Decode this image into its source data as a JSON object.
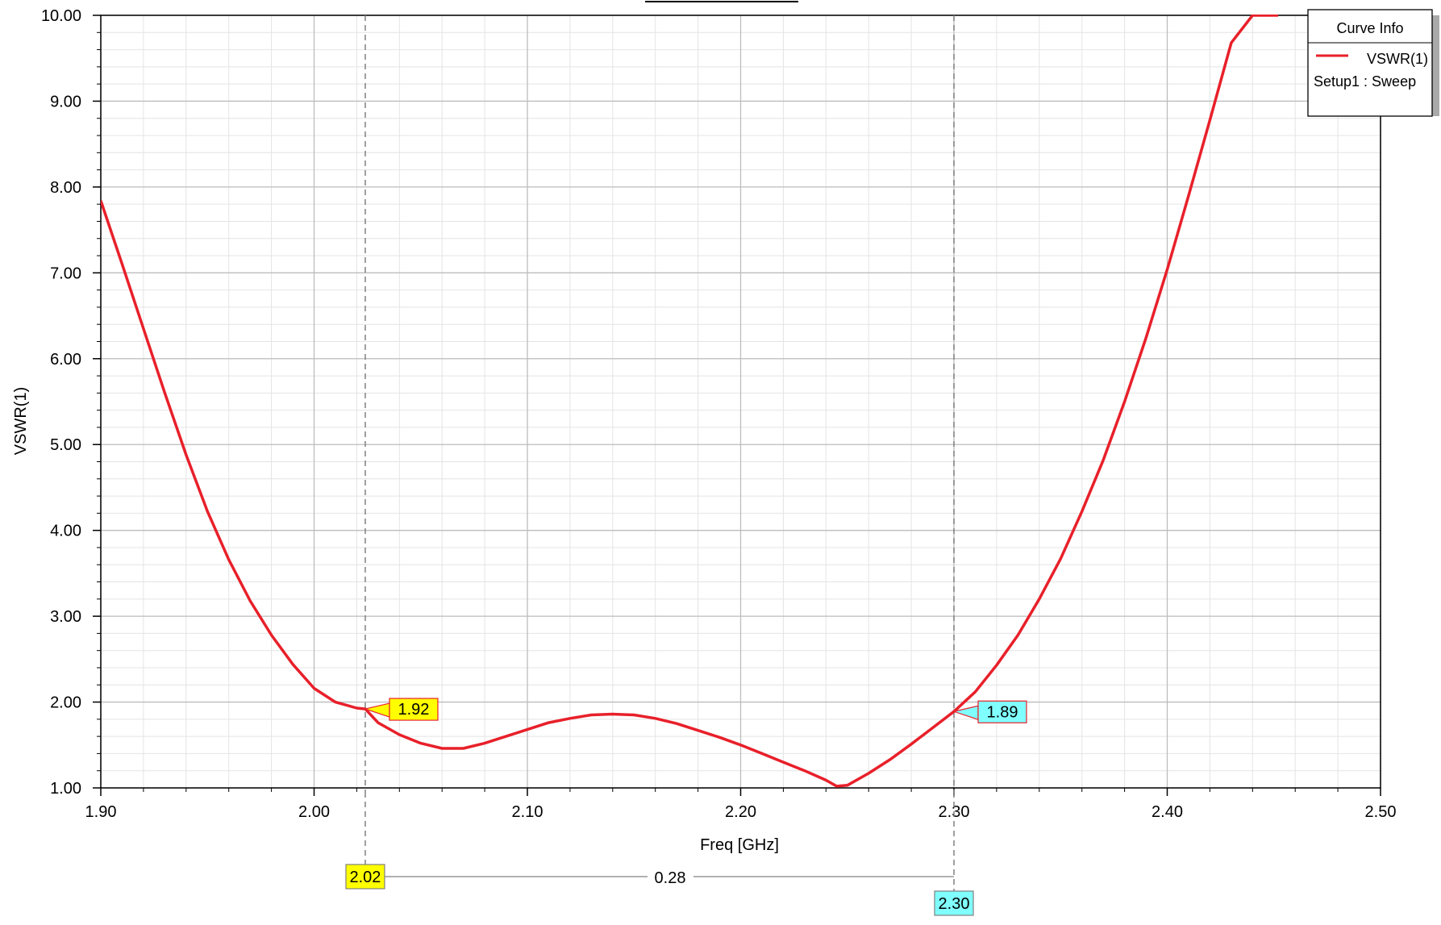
{
  "chart_data": {
    "type": "line",
    "title": "",
    "xlabel": "Freq [GHz]",
    "ylabel": "VSWR(1)",
    "xlim": [
      1.9,
      2.5
    ],
    "ylim": [
      1.0,
      10.0
    ],
    "x_ticks": [
      "1.90",
      "2.00",
      "2.10",
      "2.20",
      "2.30",
      "2.40",
      "2.50"
    ],
    "y_ticks": [
      "1.00",
      "2.00",
      "3.00",
      "4.00",
      "5.00",
      "6.00",
      "7.00",
      "8.00",
      "9.00",
      "10.00"
    ],
    "grid": true,
    "legend": {
      "title": "Curve Info",
      "position": "top-right",
      "entries": [
        {
          "name": "VSWR(1)",
          "sub": "Setup1 : Sweep",
          "color": "#e8202a"
        }
      ]
    },
    "series": [
      {
        "name": "VSWR(1)",
        "color": "#e8202a",
        "x": [
          1.9,
          1.91,
          1.92,
          1.93,
          1.94,
          1.95,
          1.96,
          1.97,
          1.98,
          1.99,
          2.0,
          2.01,
          2.02,
          2.024,
          2.03,
          2.04,
          2.05,
          2.06,
          2.07,
          2.08,
          2.09,
          2.1,
          2.11,
          2.12,
          2.13,
          2.14,
          2.15,
          2.16,
          2.17,
          2.18,
          2.19,
          2.2,
          2.21,
          2.22,
          2.23,
          2.24,
          2.245,
          2.25,
          2.26,
          2.27,
          2.28,
          2.29,
          2.3,
          2.31,
          2.32,
          2.33,
          2.34,
          2.35,
          2.36,
          2.37,
          2.38,
          2.39,
          2.4,
          2.41,
          2.42,
          2.43,
          2.44,
          2.45,
          2.452
        ],
        "y": [
          7.84,
          7.1,
          6.35,
          5.6,
          4.88,
          4.22,
          3.66,
          3.18,
          2.78,
          2.44,
          2.16,
          2.0,
          1.93,
          1.92,
          1.76,
          1.62,
          1.52,
          1.46,
          1.46,
          1.52,
          1.6,
          1.68,
          1.76,
          1.81,
          1.85,
          1.86,
          1.85,
          1.81,
          1.75,
          1.67,
          1.59,
          1.5,
          1.4,
          1.3,
          1.2,
          1.09,
          1.02,
          1.03,
          1.17,
          1.33,
          1.51,
          1.7,
          1.89,
          2.12,
          2.43,
          2.78,
          3.2,
          3.67,
          4.22,
          4.82,
          5.5,
          6.24,
          7.04,
          7.9,
          8.78,
          9.68,
          10.0,
          10.0,
          10.0
        ]
      }
    ],
    "markers": [
      {
        "id": "m1",
        "x": 2.024,
        "y": 1.92,
        "x_label": "2.02",
        "y_label": "1.92",
        "color": "#ffff00"
      },
      {
        "id": "m2",
        "x": 2.3,
        "y": 1.89,
        "x_label": "2.30",
        "y_label": "1.89",
        "color": "#80ffff"
      }
    ],
    "delta_label": "0.28"
  }
}
